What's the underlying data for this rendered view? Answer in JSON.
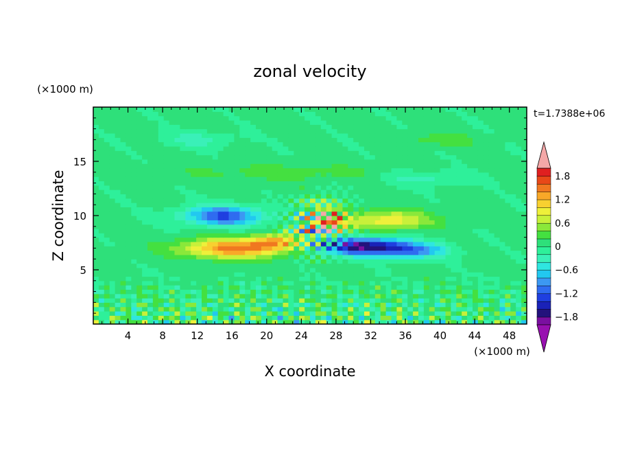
{
  "chart_data": {
    "type": "heatmap",
    "title": "zonal velocity",
    "xlabel": "X coordinate",
    "ylabel": "Z coordinate",
    "x_unit": "(×1000 m)",
    "y_unit": "(×1000 m)",
    "time_label": "t=1.7388e+06",
    "xlim": [
      0,
      50
    ],
    "ylim": [
      0,
      20
    ],
    "xticks": [
      4,
      8,
      12,
      16,
      20,
      24,
      28,
      32,
      36,
      40,
      44,
      48
    ],
    "yticks": [
      5,
      10,
      15
    ],
    "colorbar": {
      "tick_labels": [
        "1.8",
        "1.2",
        "0.6",
        "0",
        "−0.6",
        "−1.2",
        "−1.8"
      ],
      "tick_values": [
        1.8,
        1.2,
        0.6,
        0,
        -0.6,
        -1.2,
        -1.8
      ],
      "levels": [
        -2.0,
        -1.8,
        -1.6,
        -1.4,
        -1.2,
        -1.0,
        -0.8,
        -0.6,
        -0.4,
        -0.2,
        0,
        0.2,
        0.4,
        0.6,
        0.8,
        1.0,
        1.2,
        1.4,
        1.6,
        1.8,
        2.0
      ],
      "colors": [
        "#7a0fa0",
        "#23127c",
        "#1a22b8",
        "#1f3fe0",
        "#2f6cf0",
        "#3c98f2",
        "#22c8f0",
        "#2fe6e0",
        "#3af0b8",
        "#2ef09a",
        "#2ee07a",
        "#44e040",
        "#8ae83a",
        "#c8f03a",
        "#eef03a",
        "#f8d030",
        "#f8a828",
        "#f07820",
        "#e84818",
        "#e02020"
      ],
      "over_color": "#f4a8a8",
      "under_color": "#9810b0"
    },
    "features": [
      {
        "name": "westerly jet",
        "x": 16,
        "z": 7.0,
        "value": 1.4,
        "sx": 6.0,
        "sz": 0.9
      },
      {
        "name": "westerly jet east",
        "x": 21,
        "z": 7.6,
        "value": 1.0,
        "sx": 3.0,
        "sz": 0.7
      },
      {
        "name": "easterly core low",
        "x": 31,
        "z": 7.2,
        "value": -1.8,
        "sx": 5.0,
        "sz": 0.8
      },
      {
        "name": "easterly core low east",
        "x": 37,
        "z": 6.8,
        "value": -0.9,
        "sx": 4.0,
        "sz": 0.7
      },
      {
        "name": "easterly core upper",
        "x": 15,
        "z": 10.0,
        "value": -1.3,
        "sx": 4.5,
        "sz": 0.9
      },
      {
        "name": "westerly upper",
        "x": 34,
        "z": 9.6,
        "value": 0.9,
        "sx": 5.0,
        "sz": 0.9
      },
      {
        "name": "breaking region",
        "x": 27,
        "z": 9.5,
        "value": 1.6,
        "sx": 1.8,
        "sz": 1.0
      },
      {
        "name": "upper westerly band",
        "x": 22,
        "z": 14.0,
        "value": 0.25,
        "sx": 12.0,
        "sz": 0.8
      },
      {
        "name": "upper westerly east",
        "x": 40,
        "z": 17.0,
        "value": 0.3,
        "sx": 4.0,
        "sz": 0.6
      },
      {
        "name": "upper easterly west",
        "x": 12,
        "z": 17.0,
        "value": -0.35,
        "sx": 4.0,
        "sz": 0.7
      },
      {
        "name": "upper easterly east",
        "x": 38,
        "z": 13.5,
        "value": -0.35,
        "sx": 5.0,
        "sz": 0.7
      }
    ]
  }
}
